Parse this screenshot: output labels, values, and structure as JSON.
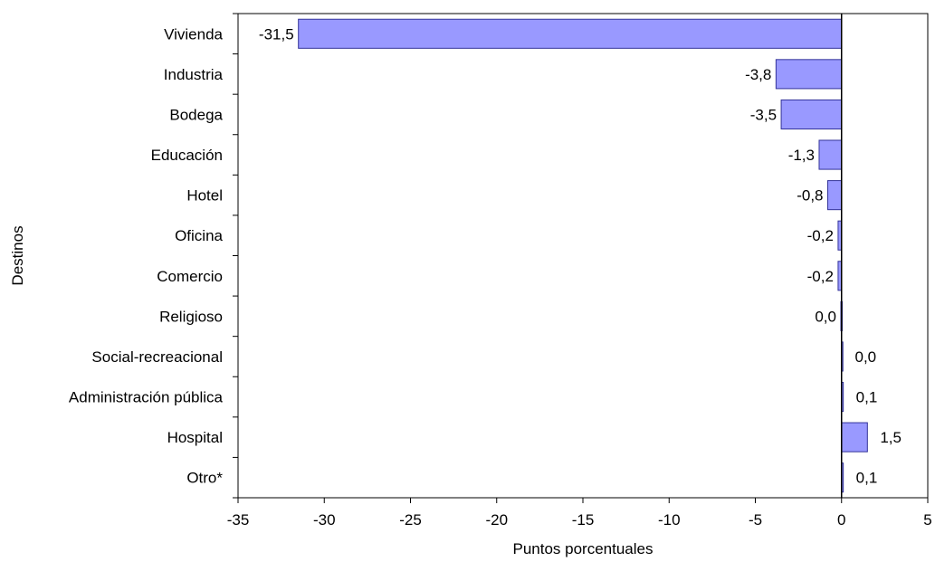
{
  "chart_data": {
    "type": "bar",
    "orientation": "horizontal",
    "categories": [
      "Vivienda",
      "Industria",
      "Bodega",
      "Educación",
      "Hotel",
      "Oficina",
      "Comercio",
      "Religioso",
      "Social-recreacional",
      "Administración pública",
      "Hospital",
      "Otro*"
    ],
    "values": [
      -31.5,
      -3.8,
      -3.5,
      -1.3,
      -0.8,
      -0.2,
      -0.2,
      -0.04,
      0.04,
      0.1,
      1.5,
      0.1
    ],
    "data_labels": [
      "-31,5",
      "-3,8",
      "-3,5",
      "-1,3",
      "-0,8",
      "-0,2",
      "-0,2",
      "0,0",
      "0,0",
      "0,1",
      "1,5",
      "0,1"
    ],
    "xlabel": "Puntos porcentuales",
    "ylabel": "Destinos",
    "xlim": [
      -35,
      5
    ],
    "xticks": [
      -35,
      -30,
      -25,
      -20,
      -15,
      -10,
      -5,
      0,
      5
    ],
    "grid": false,
    "legend": "none",
    "bar_color": "#9999ff",
    "bar_edge_color": "#333399"
  }
}
